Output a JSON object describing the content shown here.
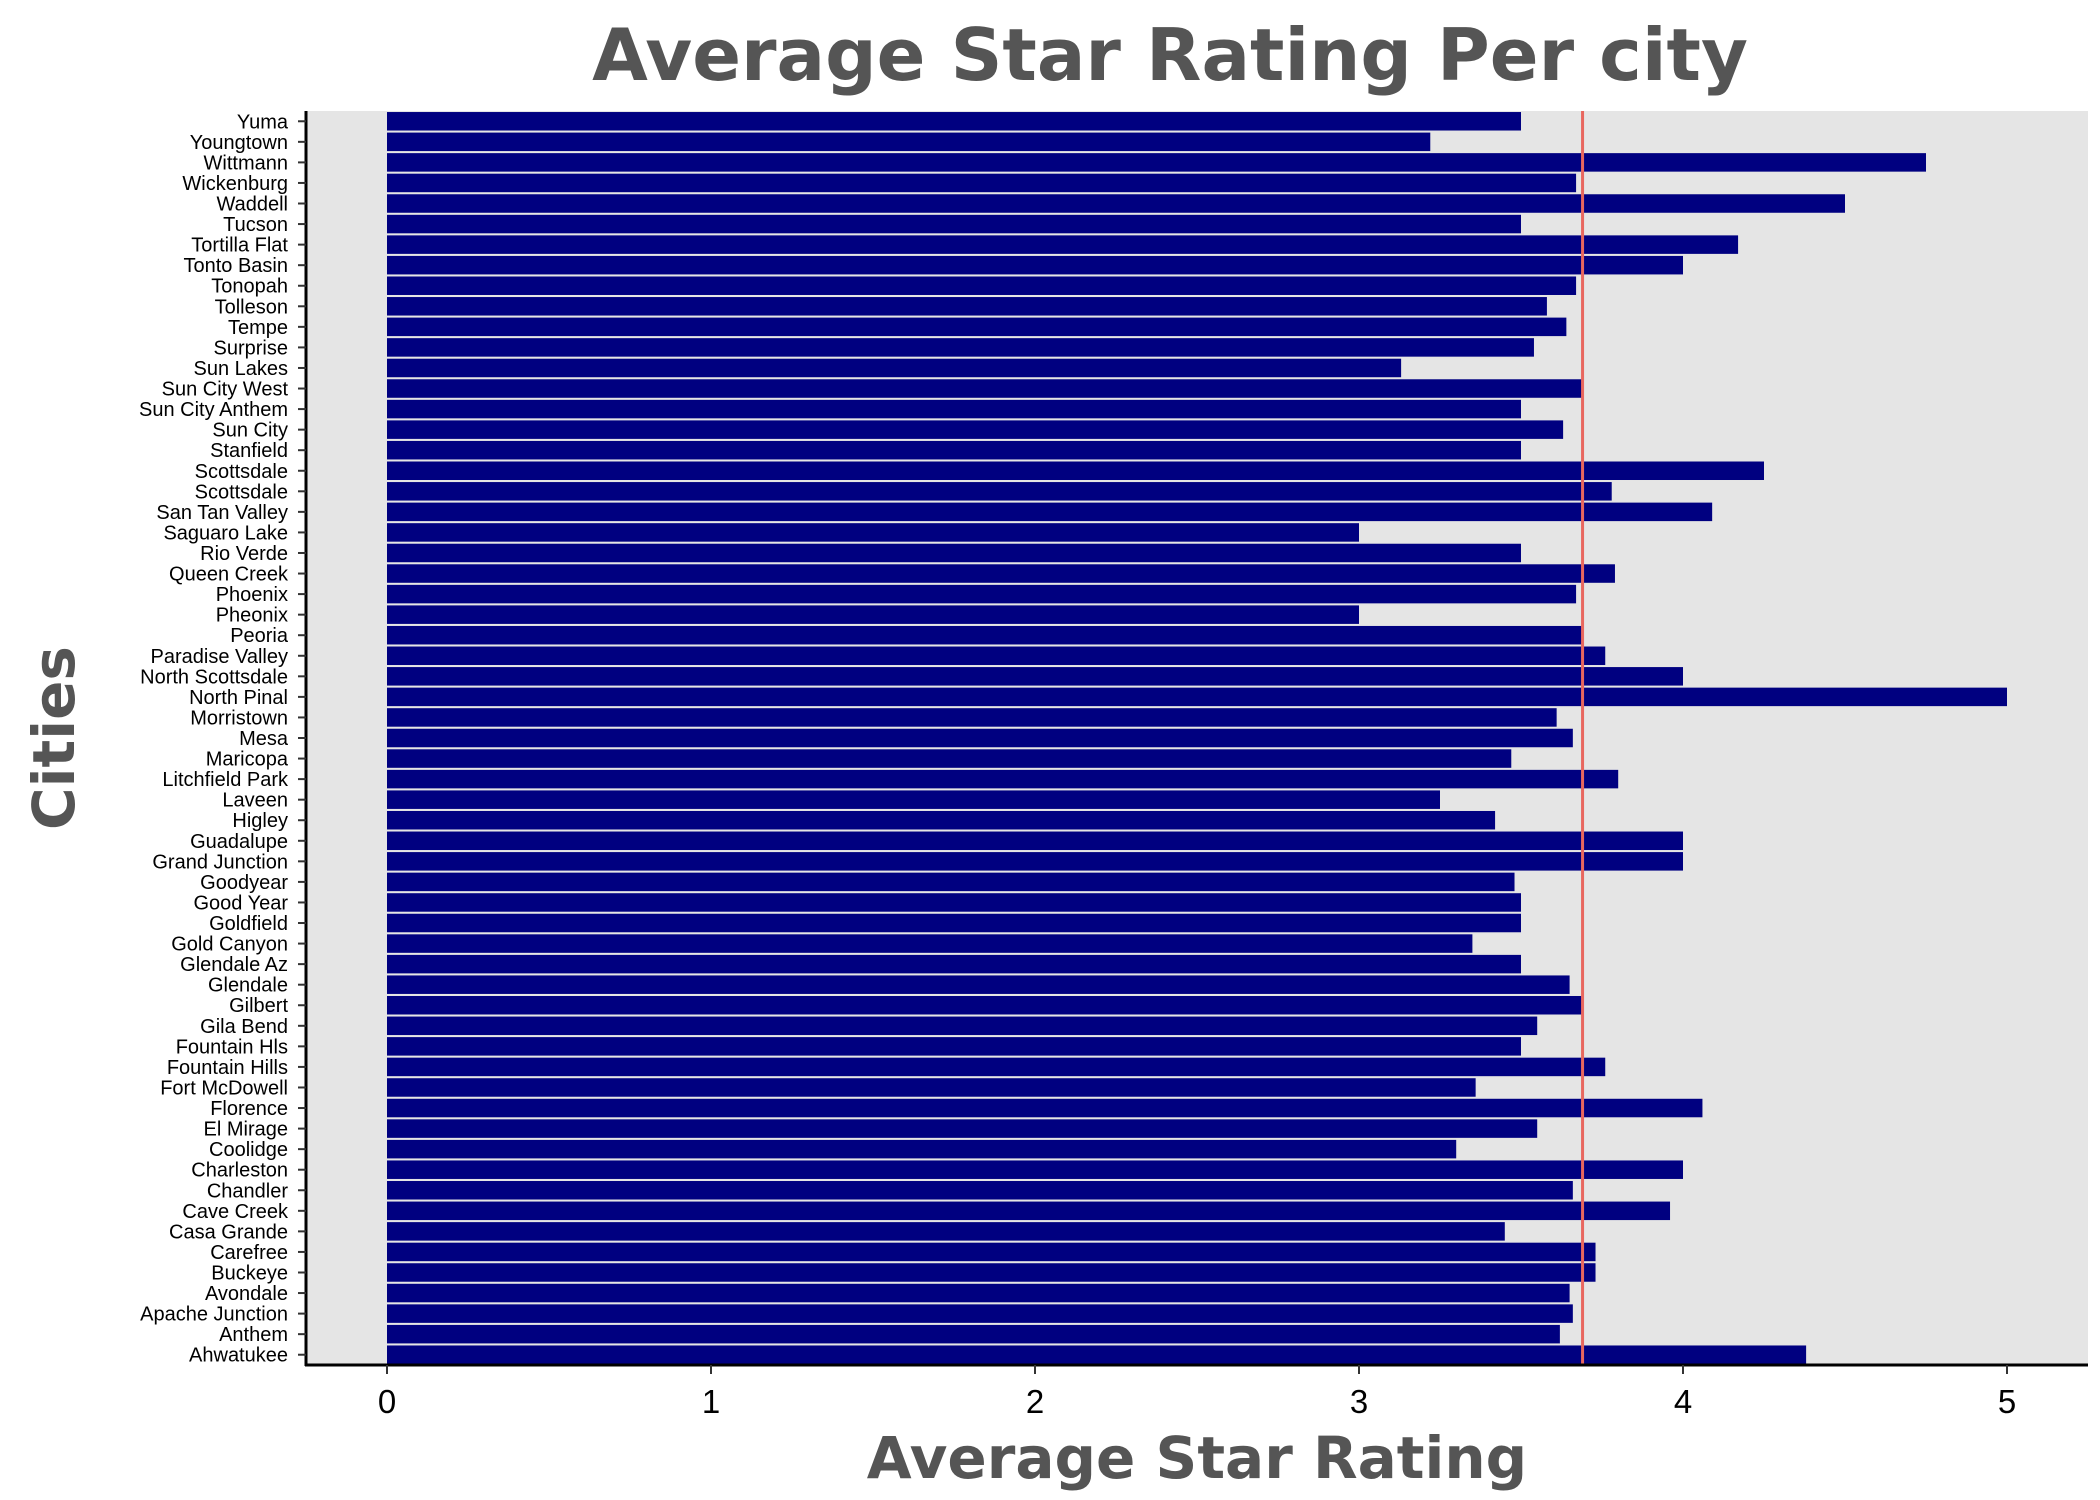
{
  "chart_data": {
    "type": "bar",
    "orientation": "horizontal",
    "title": "Average Star Rating Per city",
    "xlabel": "Average Star Rating",
    "ylabel": "Cities",
    "xlim": [
      -0.25,
      5.25
    ],
    "xticks": [
      0,
      1,
      2,
      3,
      4,
      5
    ],
    "reference_line": 3.69,
    "colors": {
      "bar": "#000080",
      "reference_line": "#e8675f",
      "panel": "#e5e5e5",
      "text": "#555555"
    },
    "grid": false,
    "categories": [
      "Ahwatukee",
      "Anthem",
      "Apache Junction",
      "Avondale",
      "Buckeye",
      "Carefree",
      "Casa Grande",
      "Cave Creek",
      "Chandler",
      "Charleston",
      "Coolidge",
      "El Mirage",
      "Florence",
      "Fort McDowell",
      "Fountain Hills",
      "Fountain Hls",
      "Gila Bend",
      "Gilbert",
      "Glendale",
      "Glendale Az",
      "Gold Canyon",
      "Goldfield",
      "Good Year",
      "Goodyear",
      "Grand Junction",
      "Guadalupe",
      "Higley",
      "Laveen",
      "Litchfield Park",
      "Maricopa",
      "Mesa",
      "Morristown",
      "North Pinal",
      "North Scottsdale",
      "Paradise Valley",
      "Peoria",
      "Pheonix",
      "Phoenix",
      "Queen Creek",
      "Rio Verde",
      "Saguaro Lake",
      "San Tan Valley",
      "Scottsdale",
      "Scottsdale ",
      "Stanfield",
      "Sun City",
      "Sun City Anthem",
      "Sun City West",
      "Sun Lakes",
      "Surprise",
      "Tempe",
      "Tolleson",
      "Tonopah",
      "Tonto Basin",
      "Tortilla Flat",
      "Tucson",
      "Waddell",
      "Wickenburg",
      "Wittmann",
      "Youngtown",
      "Yuma"
    ],
    "values": [
      4.38,
      3.62,
      3.66,
      3.65,
      3.73,
      3.73,
      3.45,
      3.96,
      3.66,
      4.0,
      3.3,
      3.55,
      4.06,
      3.36,
      3.76,
      3.5,
      3.55,
      3.69,
      3.65,
      3.5,
      3.35,
      3.5,
      3.5,
      3.48,
      4.0,
      4.0,
      3.42,
      3.25,
      3.8,
      3.47,
      3.66,
      3.61,
      5.0,
      4.0,
      3.76,
      3.69,
      3.0,
      3.67,
      3.79,
      3.5,
      3.0,
      4.09,
      3.78,
      4.25,
      3.5,
      3.63,
      3.5,
      3.69,
      3.13,
      3.54,
      3.64,
      3.58,
      3.67,
      4.0,
      4.17,
      3.5,
      4.5,
      3.67,
      4.75,
      3.22,
      3.5
    ]
  }
}
